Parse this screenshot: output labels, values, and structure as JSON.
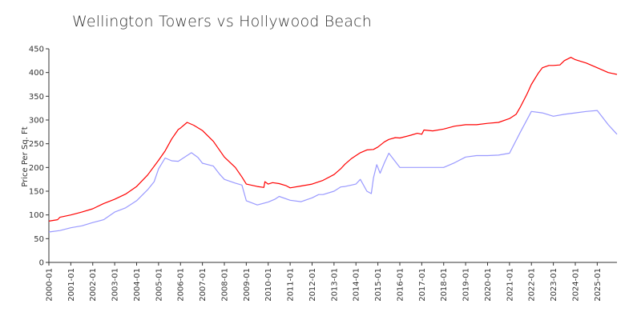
{
  "chart_data": {
    "type": "line",
    "title": "Wellington Towers vs Hollywood Beach",
    "xlabel": "",
    "ylabel": "Price Per Sq. Ft",
    "ylim": [
      0,
      450
    ],
    "yticks": [
      0,
      50,
      100,
      150,
      200,
      250,
      300,
      350,
      400,
      450
    ],
    "xlim": [
      2000.0,
      2025.9
    ],
    "xticks": [
      "2000-01",
      "2001-01",
      "2002-01",
      "2003-01",
      "2004-01",
      "2005-01",
      "2006-01",
      "2007-01",
      "2008-01",
      "2009-01",
      "2010-01",
      "2011-01",
      "2012-01",
      "2013-01",
      "2014-01",
      "2015-01",
      "2016-01",
      "2017-01",
      "2018-01",
      "2019-01",
      "2020-01",
      "2021-01",
      "2022-01",
      "2023-01",
      "2024-01",
      "2025-01"
    ],
    "grid": false,
    "series": [
      {
        "name": "Wellington Towers",
        "color": "#ff0000",
        "x": [
          2000.0,
          2000.4,
          2000.5,
          2001.0,
          2001.5,
          2002.0,
          2002.5,
          2003.0,
          2003.5,
          2004.0,
          2004.5,
          2005.0,
          2005.3,
          2005.6,
          2005.9,
          2006.0,
          2006.3,
          2006.6,
          2007.0,
          2007.5,
          2008.0,
          2008.5,
          2008.8,
          2009.0,
          2009.5,
          2009.8,
          2009.85,
          2010.0,
          2010.2,
          2010.5,
          2010.8,
          2011.0,
          2011.5,
          2012.0,
          2012.5,
          2013.0,
          2013.3,
          2013.5,
          2013.8,
          2014.0,
          2014.2,
          2014.5,
          2014.8,
          2015.0,
          2015.3,
          2015.5,
          2015.8,
          2016.0,
          2016.5,
          2016.8,
          2017.0,
          2017.1,
          2017.5,
          2018.0,
          2018.5,
          2019.0,
          2019.5,
          2020.0,
          2020.5,
          2021.0,
          2021.3,
          2021.5,
          2021.8,
          2022.0,
          2022.3,
          2022.5,
          2022.8,
          2023.0,
          2023.3,
          2023.5,
          2023.8,
          2024.0,
          2024.5,
          2025.0,
          2025.5,
          2025.9
        ],
        "values": [
          87,
          90,
          95,
          100,
          106,
          113,
          124,
          133,
          144,
          160,
          184,
          215,
          235,
          260,
          280,
          283,
          295,
          289,
          278,
          255,
          222,
          200,
          180,
          165,
          160,
          158,
          170,
          165,
          168,
          166,
          162,
          157,
          161,
          165,
          173,
          185,
          197,
          207,
          219,
          225,
          231,
          237,
          238,
          243,
          254,
          259,
          263,
          262,
          268,
          272,
          270,
          279,
          277,
          281,
          287,
          290,
          290,
          293,
          295,
          303,
          312,
          328,
          355,
          375,
          398,
          410,
          415,
          415,
          416,
          425,
          432,
          427,
          420,
          410,
          400,
          396
        ]
      },
      {
        "name": "Hollywood Beach",
        "color": "#9999ff",
        "x": [
          2000.0,
          2000.5,
          2001.0,
          2001.5,
          2002.0,
          2002.5,
          2003.0,
          2003.5,
          2004.0,
          2004.5,
          2004.8,
          2005.0,
          2005.3,
          2005.6,
          2005.9,
          2006.2,
          2006.5,
          2006.8,
          2007.0,
          2007.5,
          2007.8,
          2008.0,
          2008.5,
          2008.8,
          2009.0,
          2009.5,
          2010.0,
          2010.3,
          2010.5,
          2011.0,
          2011.5,
          2012.0,
          2012.3,
          2012.5,
          2013.0,
          2013.3,
          2013.5,
          2013.8,
          2014.0,
          2014.2,
          2014.5,
          2014.7,
          2014.8,
          2014.95,
          2015.1,
          2015.3,
          2015.5,
          2016.0,
          2017.0,
          2018.0,
          2018.5,
          2019.0,
          2019.5,
          2020.0,
          2020.5,
          2021.0,
          2021.5,
          2022.0,
          2022.5,
          2023.0,
          2023.5,
          2024.0,
          2024.5,
          2025.0,
          2025.5,
          2025.9
        ],
        "values": [
          64,
          67,
          73,
          77,
          84,
          90,
          106,
          115,
          130,
          153,
          170,
          197,
          220,
          214,
          213,
          222,
          231,
          221,
          209,
          203,
          185,
          175,
          167,
          163,
          130,
          121,
          127,
          133,
          139,
          131,
          128,
          136,
          143,
          143,
          150,
          159,
          160,
          163,
          165,
          175,
          150,
          145,
          178,
          206,
          188,
          210,
          230,
          200,
          200,
          200,
          210,
          222,
          225,
          225,
          226,
          230,
          275,
          318,
          315,
          308,
          312,
          315,
          318,
          320,
          290,
          270
        ]
      }
    ]
  }
}
